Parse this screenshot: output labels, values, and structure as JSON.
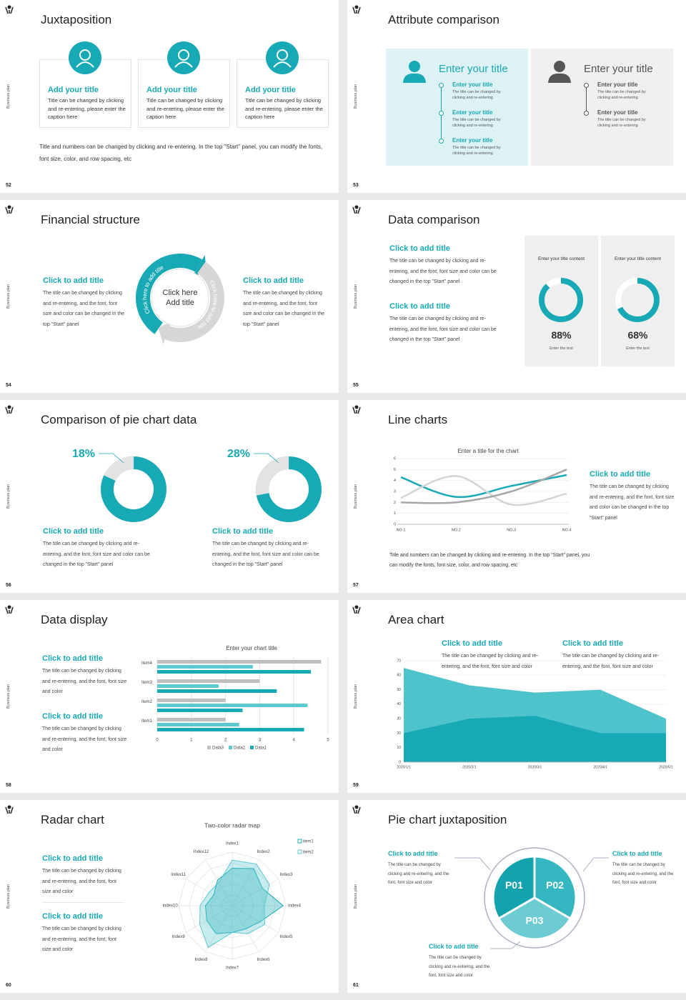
{
  "brand": "Business plan",
  "slides": [
    {
      "number": 52,
      "title": "Juxtaposition",
      "items": [
        {
          "title": "Add your title",
          "text": "Title can be changed by clicking and re-entering, please enter the caption here"
        },
        {
          "title": "Add your title",
          "text": "Title can be changed by clicking and re-entering, please enter the caption here"
        },
        {
          "title": "Add your title",
          "text": "Title can be changed by clicking and re-entering, please enter the caption here"
        }
      ],
      "note": "Title and numbers can be changed by clicking and re-entering. In the top \"Start\" panel, you can modify the fonts, font size, color, and row spacing, etc"
    },
    {
      "number": 53,
      "title": "Attribute comparison",
      "panels": [
        {
          "heading": "Enter your title",
          "items": [
            {
              "title": "Enter your title",
              "text": "The title can be changed by clicking and re-entering"
            },
            {
              "title": "Enter your title",
              "text": "The title can be changed by clicking and re-entering"
            },
            {
              "title": "Enter your title",
              "text": "The title can be changed by clicking and re-entering"
            }
          ]
        },
        {
          "heading": "Enter your title",
          "items": [
            {
              "title": "Enter your title",
              "text": "The title can be changed by clicking and re-entering"
            },
            {
              "title": "Enter your title",
              "text": "The title can be changed by clicking and re-entering"
            }
          ]
        }
      ]
    },
    {
      "number": 54,
      "title": "Financial structure",
      "center": "Click here Add title",
      "arrows": [
        "Click here to add title",
        "Click here to add title"
      ],
      "blocks": [
        {
          "title": "Click to add title",
          "text": "The title can be changed by clicking and re-entering, and the font, font size and color can be changed in the top \"Start\" panel"
        },
        {
          "title": "Click to add title",
          "text": "The title can be changed by clicking and re-entering, and the font, font size and color can be changed in the top \"Start\" panel"
        }
      ]
    },
    {
      "number": 55,
      "title": "Data comparison",
      "blocks": [
        {
          "title": "Click to add title",
          "text": "The title can be changed by clicking and re-entering, and the font, font size and color can be changed in the top \"Start\" panel"
        },
        {
          "title": "Click to add title",
          "text": "The title can be changed by clicking and re-entering, and the font, font size and color can be changed in the top \"Start\" panel"
        }
      ],
      "cards": [
        {
          "heading": "Enter your title content",
          "value": 88,
          "value_label": "88%",
          "caption": "Enter the text"
        },
        {
          "heading": "Enter your title content",
          "value": 68,
          "value_label": "68%",
          "caption": "Enter the text"
        }
      ]
    },
    {
      "number": 56,
      "title": "Comparison of pie chart data",
      "pies": [
        {
          "value": 18,
          "value_label": "18%",
          "title": "Click to add title",
          "text": "The title can be changed by clicking and re-entering, and the font, font size and color can be changed in the top \"Start\" panel"
        },
        {
          "value": 28,
          "value_label": "28%",
          "title": "Click to add title",
          "text": "The title can be changed by clicking and re-entering, and the font, font size and color can be changed in the top \"Start\" panel"
        }
      ]
    },
    {
      "number": 57,
      "title": "Line charts",
      "chart": {
        "type": "line",
        "title": "Enter a title for the chart",
        "categories": [
          "NO.1",
          "NO.2",
          "NO.3",
          "NO.4"
        ],
        "ylim": [
          0,
          6
        ],
        "yticks": [
          0,
          1,
          2,
          3,
          4,
          5,
          6
        ],
        "series": [
          {
            "color": "#17a9b5",
            "values": [
              4.3,
              2.5,
              3.5,
              4.5
            ]
          },
          {
            "color": "#d4d4d4",
            "values": [
              2.4,
              4.4,
              1.8,
              2.8
            ]
          },
          {
            "color": "#a6a6a6",
            "values": [
              2,
              2,
              3,
              5
            ]
          }
        ]
      },
      "block": {
        "title": "Click to add title",
        "text": "The title can be changed by clicking and re-entering, and the font, font size and color can be changed in the top \"Start\" panel"
      },
      "note": "Title and numbers can be changed by clicking and re-entering. In the top \"Start\" panel, you can modify the fonts, font size, color, and row spacing, etc"
    },
    {
      "number": 58,
      "title": "Data display",
      "blocks": [
        {
          "title": "Click to add title",
          "text": "The title can be changed by clicking and re-entering, and the font, font size and color"
        },
        {
          "title": "Click to add title",
          "text": "The title can be changed by clicking and re-entering, and the font, font size and color"
        }
      ],
      "chart": {
        "type": "bar",
        "orientation": "horizontal",
        "title": "Enter your chart title",
        "categories": [
          "Item1",
          "Item2",
          "Item3",
          "Item4"
        ],
        "xlim": [
          0,
          5
        ],
        "xticks": [
          0,
          1,
          2,
          3,
          4,
          5
        ],
        "grid": true,
        "series": [
          {
            "name": "Data3",
            "color": "#bfbfbf",
            "values": [
              2,
              2,
              3,
              4.8
            ]
          },
          {
            "name": "Data2",
            "color": "#5cc8cf",
            "values": [
              2.4,
              4.4,
              1.8,
              2.8
            ]
          },
          {
            "name": "Data1",
            "color": "#17a9b5",
            "values": [
              4.3,
              2.5,
              3.5,
              4.5
            ]
          }
        ]
      }
    },
    {
      "number": 59,
      "title": "Area chart",
      "blocks": [
        {
          "title": "Click to add title",
          "text": "The title can be changed by clicking and re-entering, and the font, font size and color"
        },
        {
          "title": "Click to add title",
          "text": "The title can be changed by clicking and re-entering, and the font, font size and color"
        }
      ],
      "chart": {
        "type": "area",
        "x": [
          "2020/1/1",
          "2020/2/1",
          "2020/3/1",
          "2020/4/1",
          "2020/5/1"
        ],
        "ylim": [
          0,
          70
        ],
        "yticks": [
          0,
          10,
          20,
          30,
          40,
          50,
          60,
          70
        ],
        "series": [
          {
            "color": "#4fc3cb",
            "values": [
              65,
              53,
              48,
              50,
              30
            ]
          },
          {
            "color": "#17a9b5",
            "values": [
              20,
              30,
              32,
              20,
              20
            ]
          }
        ]
      }
    },
    {
      "number": 60,
      "title": "Radar chart",
      "blocks": [
        {
          "title": "Click to add title",
          "text": "The title can be changed by clicking and re-entering, and the font, font size and color"
        },
        {
          "title": "Click to add title",
          "text": "The title can be changed by clicking and re-entering, and the font, font size and color"
        }
      ],
      "chart": {
        "type": "radar",
        "title": "Two-color radar map",
        "categories": [
          "Index1",
          "Index2",
          "Index3",
          "Index4",
          "Index5",
          "Index6",
          "Index7",
          "Index8",
          "Index9",
          "Index10",
          "Index11",
          "Index12"
        ],
        "rlim": [
          0,
          10
        ],
        "series": [
          {
            "name": "item1",
            "color": "#17a9b5",
            "values": [
              7,
              8,
              6.5,
              9.5,
              6,
              5,
              5,
              6,
              5.5,
              5,
              4,
              5.5
            ]
          },
          {
            "name": "item2",
            "color": "#5cc8cf",
            "values": [
              8.5,
              9,
              8,
              6,
              7,
              6,
              5,
              9,
              7,
              6,
              5,
              5
            ]
          }
        ]
      }
    },
    {
      "number": 61,
      "title": "Pie chart juxtaposition",
      "segments": [
        "P01",
        "P02",
        "P03"
      ],
      "colors": [
        "#12a3ae",
        "#34b7c0",
        "#6dcbd2"
      ],
      "blocks": [
        {
          "title": "Click to add title",
          "text": "The title can be changed by clicking and re-entering, and the font, font size and color"
        },
        {
          "title": "Click to add title",
          "text": "The title can be changed by clicking and re-entering, and the font, font size and color"
        },
        {
          "title": "Click to add title",
          "text": "The title can be changed by clicking and re-entering, and the font, font size and color"
        }
      ]
    }
  ]
}
